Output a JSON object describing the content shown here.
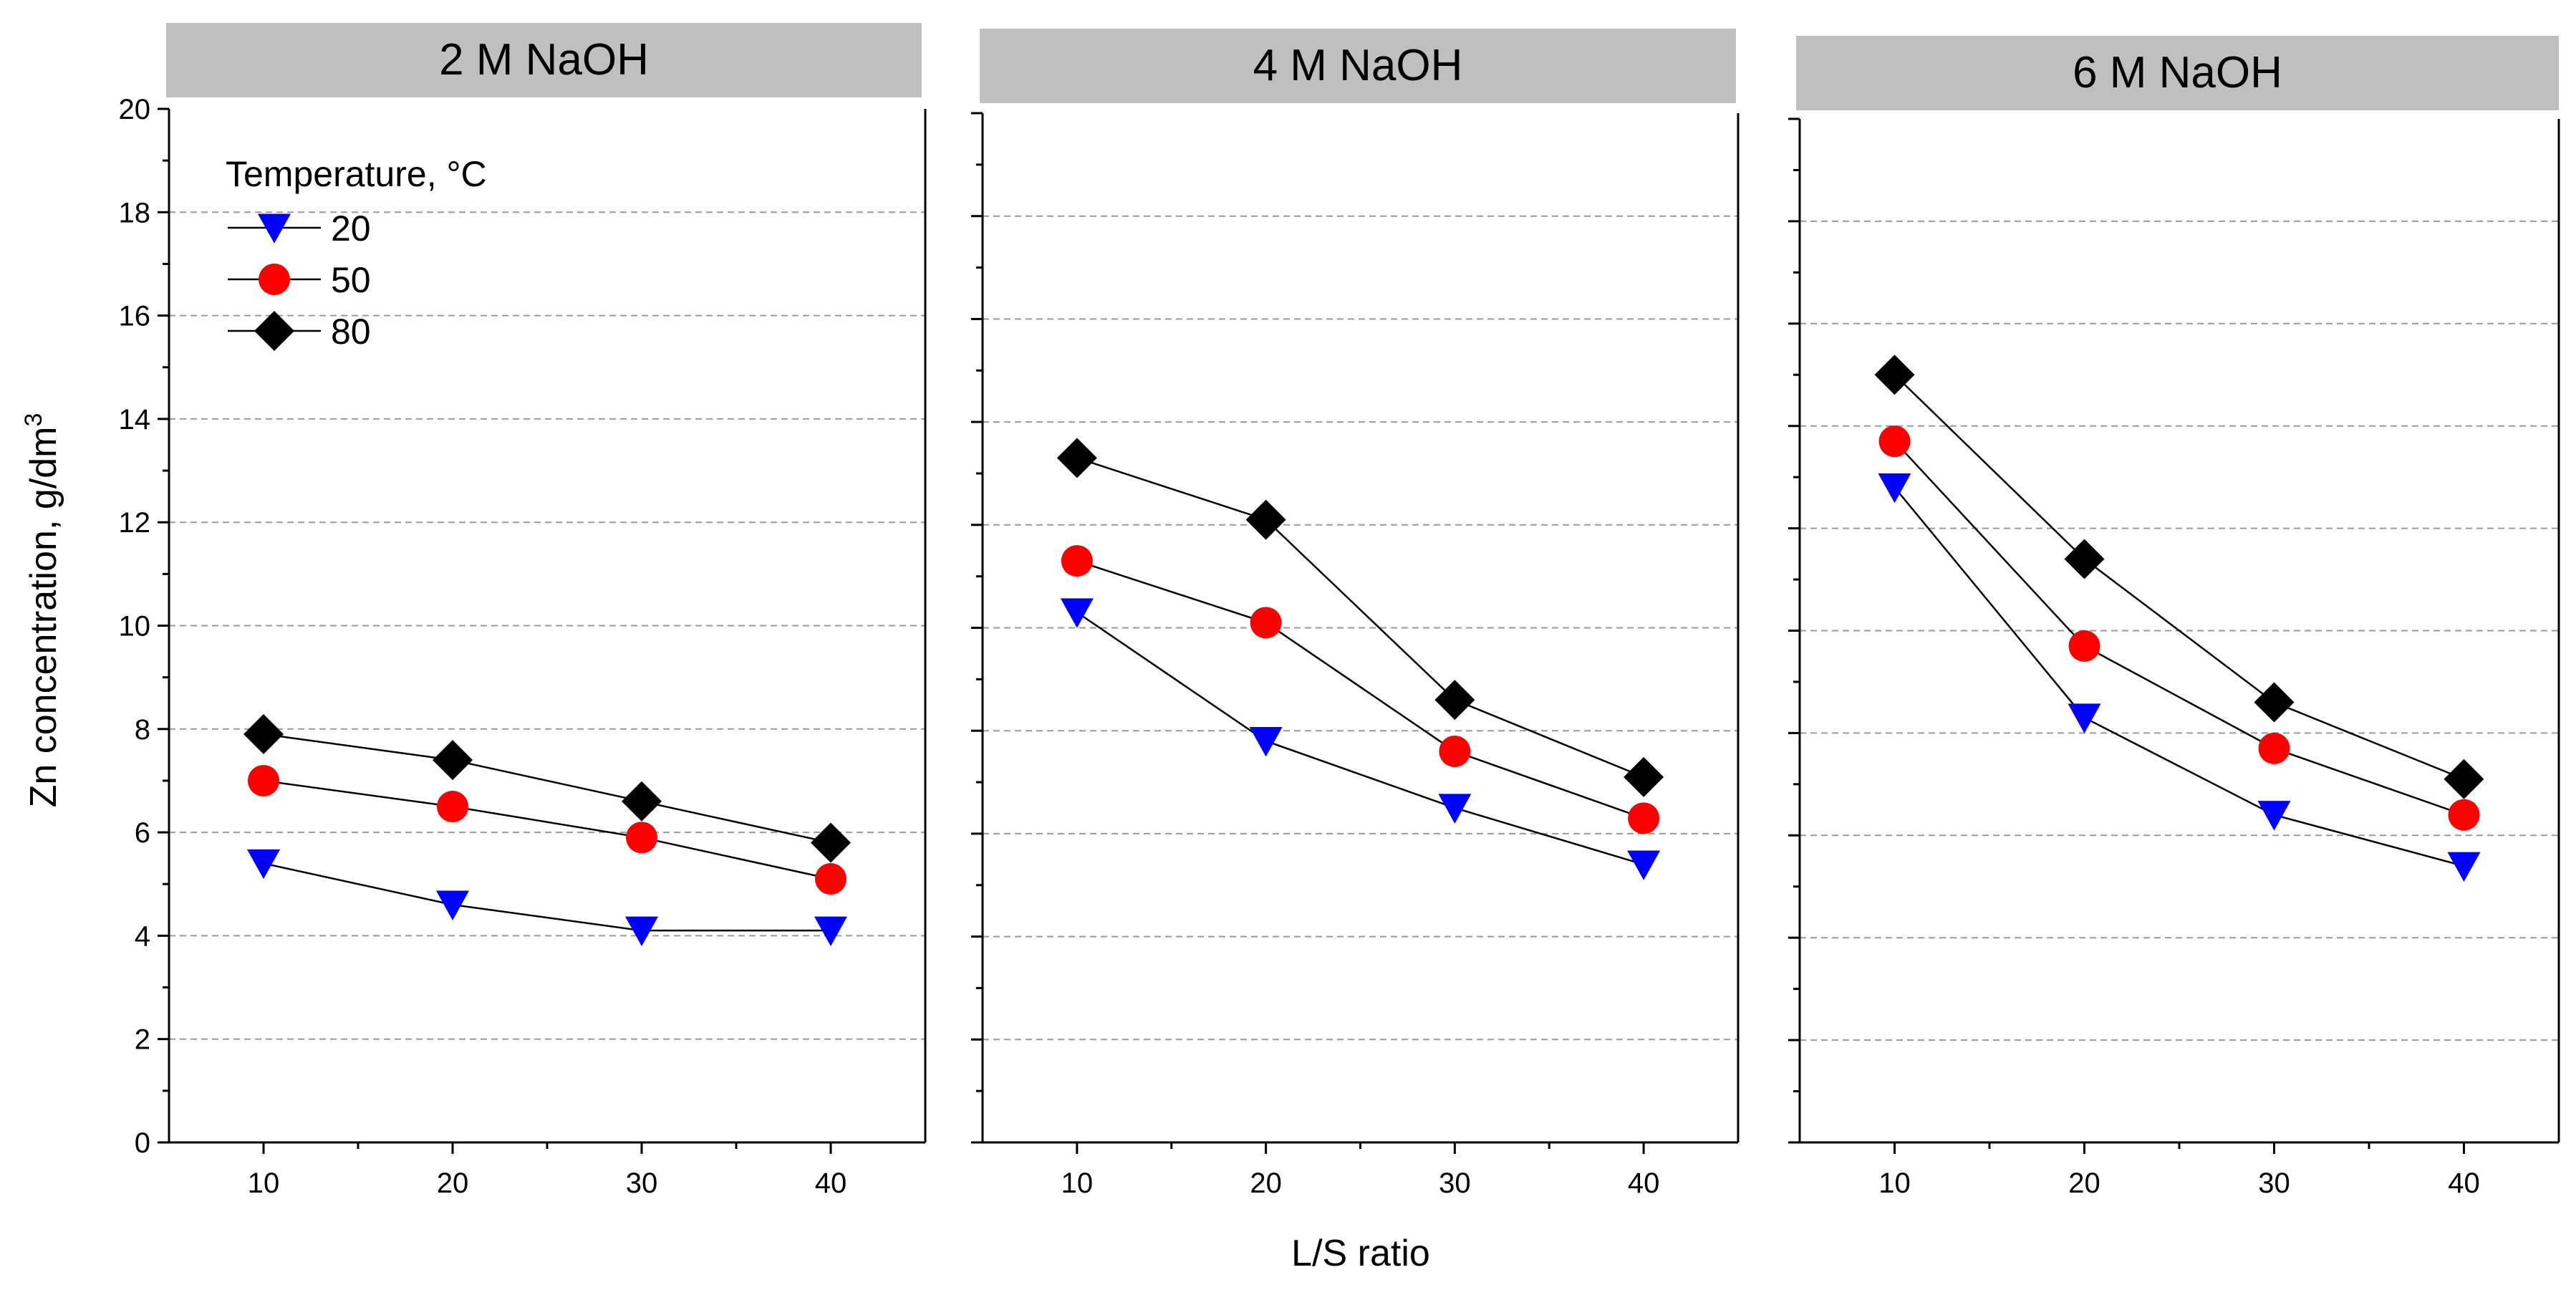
{
  "chart_data": {
    "type": "line",
    "ylabel": "Zn concentration, g/dm",
    "ylabel_sup": "3",
    "xlabel": "L/S ratio",
    "ylim": [
      0,
      20
    ],
    "yticks": [
      "0",
      "2",
      "4",
      "6",
      "8",
      "10",
      "12",
      "14",
      "16",
      "18",
      "20"
    ],
    "x": [
      10,
      20,
      30,
      40
    ],
    "xtick_labels": [
      "10",
      "20",
      "30",
      "40"
    ],
    "grid": "horizontal dashed",
    "legend": {
      "title": "Temperature, °C",
      "placement": "top-left of first panel",
      "entries": [
        {
          "label": "20",
          "color": "#0000ff",
          "marker": "triangle-down"
        },
        {
          "label": "50",
          "color": "#ff0000",
          "marker": "circle"
        },
        {
          "label": "80",
          "color": "#000000",
          "marker": "diamond"
        }
      ]
    },
    "panels": [
      {
        "title": "2 M NaOH",
        "series": [
          {
            "name": "20",
            "values": [
              5.4,
              4.6,
              4.1,
              4.1
            ]
          },
          {
            "name": "50",
            "values": [
              7.0,
              6.5,
              5.9,
              5.1
            ]
          },
          {
            "name": "80",
            "values": [
              7.9,
              7.4,
              6.6,
              5.8
            ]
          }
        ]
      },
      {
        "title": "4 M NaOH",
        "series": [
          {
            "name": "20",
            "values": [
              10.3,
              7.8,
              6.5,
              5.4
            ]
          },
          {
            "name": "50",
            "values": [
              11.3,
              10.1,
              7.6,
              6.3
            ]
          },
          {
            "name": "80",
            "values": [
              13.3,
              12.1,
              8.6,
              7.1
            ]
          }
        ]
      },
      {
        "title": "6 M NaOH",
        "series": [
          {
            "name": "20",
            "values": [
              12.8,
              8.3,
              6.4,
              5.4
            ]
          },
          {
            "name": "50",
            "values": [
              13.7,
              9.7,
              7.7,
              6.4
            ]
          },
          {
            "name": "80",
            "values": [
              15.0,
              11.4,
              8.6,
              7.1
            ]
          }
        ]
      }
    ]
  }
}
